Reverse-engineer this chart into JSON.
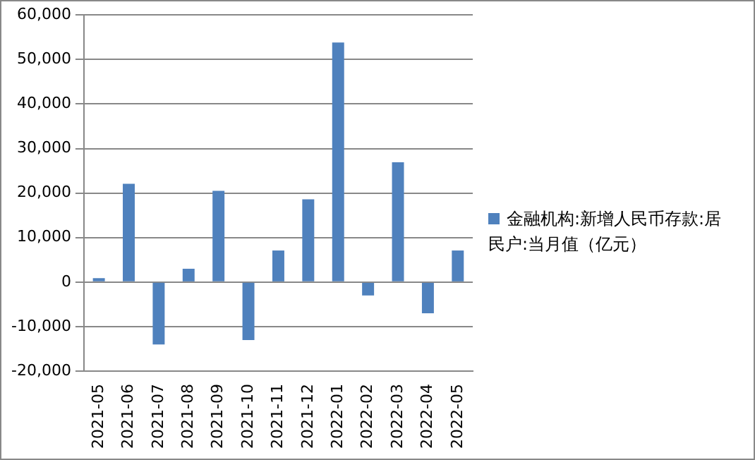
{
  "chart_data": {
    "type": "bar",
    "categories": [
      "2021-05",
      "2021-06",
      "2021-07",
      "2021-08",
      "2021-09",
      "2021-10",
      "2021-11",
      "2021-12",
      "2022-01",
      "2022-02",
      "2022-03",
      "2022-04",
      "2022-05"
    ],
    "series": [
      {
        "name": "金融机构:新增人民币存款:居民户:当月值（亿元）",
        "color": "#4f81bd",
        "values": [
          900,
          22100,
          -14000,
          3000,
          20500,
          -13000,
          7100,
          18600,
          53800,
          -3000,
          26900,
          -7000,
          7100
        ]
      }
    ],
    "ylim": [
      -20000,
      60000
    ],
    "yticks": [
      {
        "value": -20000,
        "label": "-20,000"
      },
      {
        "value": -10000,
        "label": "-10,000"
      },
      0,
      {
        "value": 10000,
        "label": "10,000"
      },
      {
        "value": 20000,
        "label": "20,000"
      },
      {
        "value": 30000,
        "label": "30,000"
      },
      {
        "value": 40000,
        "label": "40,000"
      },
      {
        "value": 50000,
        "label": "50,000"
      },
      {
        "value": 60000,
        "label": "60,000"
      }
    ],
    "grid": "y",
    "legend": "right"
  }
}
